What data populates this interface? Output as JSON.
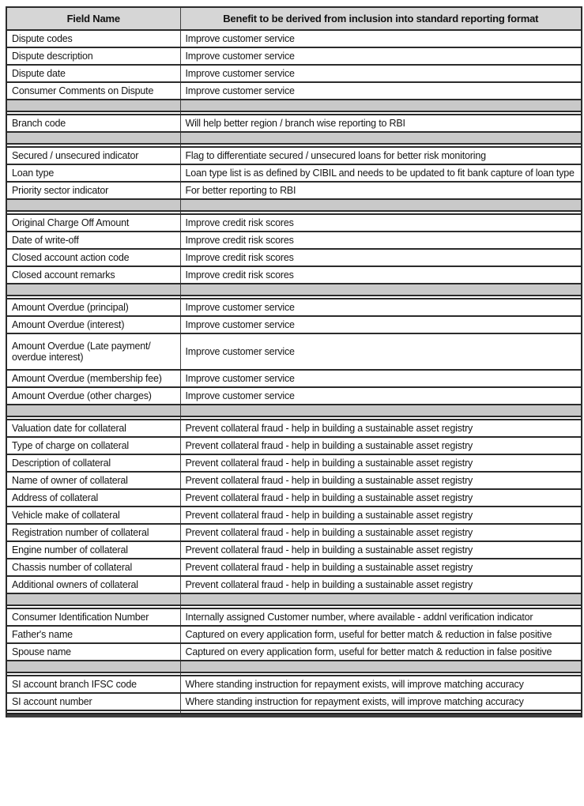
{
  "table": {
    "header": {
      "field": "Field Name",
      "benefit": "Benefit to be derived from inclusion into standard reporting format"
    },
    "rows": [
      {
        "type": "data",
        "field": "Dispute codes",
        "benefit": "Improve customer service"
      },
      {
        "type": "data",
        "field": "Dispute description",
        "benefit": "Improve customer service"
      },
      {
        "type": "data",
        "field": "Dispute date",
        "benefit": "Improve customer service"
      },
      {
        "type": "data",
        "field": "Consumer Comments on Dispute",
        "benefit": "Improve customer service"
      },
      {
        "type": "separator"
      },
      {
        "type": "gap"
      },
      {
        "type": "data",
        "field": "Branch code",
        "benefit": "Will help better region / branch wise reporting to RBI"
      },
      {
        "type": "separator"
      },
      {
        "type": "gap"
      },
      {
        "type": "data",
        "field": "Secured / unsecured indicator",
        "benefit": "Flag to differentiate secured / unsecured loans for better risk monitoring"
      },
      {
        "type": "data",
        "field": "Loan type",
        "benefit": "Loan type list is as defined by CIBIL and needs to be updated to fit bank capture of loan type"
      },
      {
        "type": "data",
        "field": "Priority sector indicator",
        "benefit": "For better reporting to RBI"
      },
      {
        "type": "separator"
      },
      {
        "type": "gap"
      },
      {
        "type": "data",
        "field": "Original Charge Off Amount",
        "benefit": "Improve credit risk scores"
      },
      {
        "type": "data",
        "field": "Date of write-off",
        "benefit": "Improve credit risk scores"
      },
      {
        "type": "data",
        "field": "Closed account action code",
        "benefit": "Improve credit risk scores"
      },
      {
        "type": "data",
        "field": "Closed account remarks",
        "benefit": "Improve credit risk scores"
      },
      {
        "type": "separator"
      },
      {
        "type": "gap"
      },
      {
        "type": "data",
        "field": "Amount Overdue (principal)",
        "benefit": "Improve customer service"
      },
      {
        "type": "data",
        "field": "Amount Overdue (interest)",
        "benefit": "Improve customer service"
      },
      {
        "type": "data",
        "tall": true,
        "field": "Amount Overdue (Late payment/\noverdue interest)",
        "benefit": "Improve customer service"
      },
      {
        "type": "data",
        "field": "Amount Overdue (membership fee)",
        "benefit": "Improve customer service"
      },
      {
        "type": "data",
        "field": "Amount Overdue (other charges)",
        "benefit": "Improve customer service"
      },
      {
        "type": "separator"
      },
      {
        "type": "gap"
      },
      {
        "type": "data",
        "field": "Valuation date for collateral",
        "benefit": "Prevent collateral fraud - help in building a sustainable asset registry"
      },
      {
        "type": "data",
        "field": "Type of charge on collateral",
        "benefit": "Prevent collateral fraud - help in building a sustainable asset registry"
      },
      {
        "type": "data",
        "field": "Description of collateral",
        "benefit": "Prevent collateral fraud - help in building a sustainable asset registry"
      },
      {
        "type": "data",
        "field": "Name of owner of collateral",
        "benefit": "Prevent collateral fraud - help in building a sustainable asset registry"
      },
      {
        "type": "data",
        "field": "Address of collateral",
        "benefit": "Prevent collateral fraud - help in building a sustainable asset registry"
      },
      {
        "type": "data",
        "field": "Vehicle make of collateral",
        "benefit": "Prevent collateral fraud - help in building a sustainable asset registry"
      },
      {
        "type": "data",
        "field": "Registration number of collateral",
        "benefit": "Prevent collateral fraud - help in building a sustainable asset registry"
      },
      {
        "type": "data",
        "field": "Engine number of collateral",
        "benefit": "Prevent collateral fraud - help in building a sustainable asset registry"
      },
      {
        "type": "data",
        "field": "Chassis number of collateral",
        "benefit": "Prevent collateral fraud - help in building a sustainable asset registry"
      },
      {
        "type": "data",
        "field": "Additional owners of collateral",
        "benefit": "Prevent collateral fraud - help in building a sustainable asset registry"
      },
      {
        "type": "separator"
      },
      {
        "type": "gap"
      },
      {
        "type": "data",
        "field": "Consumer Identification Number",
        "benefit": "Internally assigned Customer number, where available - addnl verification indicator"
      },
      {
        "type": "data",
        "field": "Father's name",
        "benefit": "Captured on every application form, useful for better match & reduction in false positive"
      },
      {
        "type": "data",
        "field": "Spouse name",
        "benefit": "Captured on every application form, useful for better match & reduction in false positive"
      },
      {
        "type": "separator"
      },
      {
        "type": "gap"
      },
      {
        "type": "data",
        "field": "SI account branch IFSC code",
        "benefit": "Where standing instruction for repayment exists, will improve matching accuracy"
      },
      {
        "type": "data",
        "field": "SI account number",
        "benefit": "Where standing instruction for repayment exists, will improve matching accuracy"
      },
      {
        "type": "gap"
      },
      {
        "type": "cutoff"
      }
    ],
    "colors": {
      "header_bg": "#d6d6d6",
      "separator_bg": "#c9c9c9",
      "border": "#2b2b2b",
      "cutoff_band": "#3e3e3e"
    }
  }
}
